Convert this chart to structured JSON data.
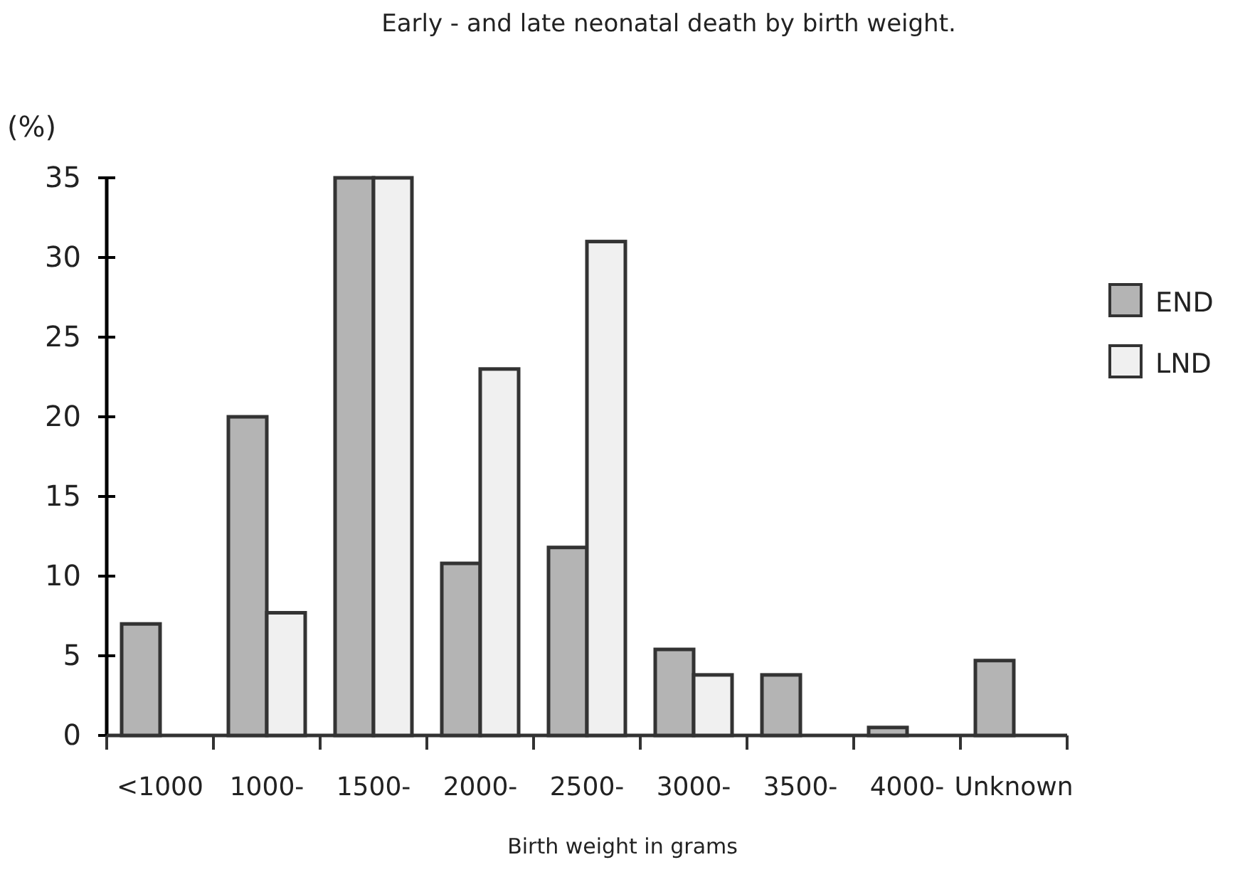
{
  "chart_data": {
    "type": "bar",
    "title": "Early - and late neonatal death by birth weight.",
    "xlabel": "Birth weight in grams",
    "ylabel": "(%)",
    "categories": [
      "<1000",
      "1000-",
      "1500-",
      "2000-",
      "2500-",
      "3000-",
      "3500-",
      "4000-",
      "Unknown"
    ],
    "series": [
      {
        "name": "END",
        "color": "#b4b4b4",
        "values": [
          7,
          20,
          35,
          10.8,
          11.8,
          5.4,
          3.8,
          0.5,
          4.7
        ]
      },
      {
        "name": "LND",
        "color": "#f0f0f0",
        "values": [
          null,
          7.7,
          35,
          23,
          31,
          3.8,
          null,
          null,
          null
        ]
      }
    ],
    "ylim": [
      0,
      35
    ],
    "yticks": [
      0,
      5,
      10,
      15,
      20,
      25,
      30,
      35
    ],
    "legend": "right",
    "grid": false
  }
}
